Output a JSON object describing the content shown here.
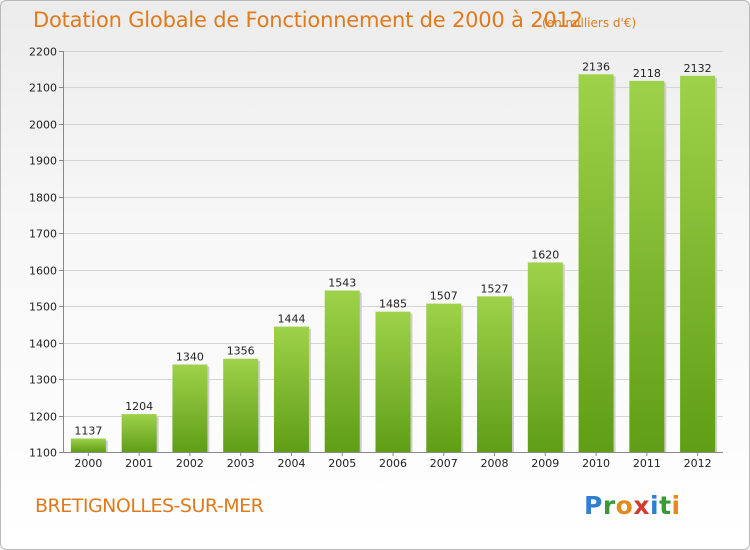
{
  "header": {
    "title": "Dotation Globale de Fonctionnement de 2000 à 2012",
    "unit": "(en milliers d'€)"
  },
  "footer": {
    "commune": "BRETIGNOLLES-SUR-MER",
    "logo_letters": [
      "P",
      "r",
      "o",
      "x",
      "i",
      "t",
      "i"
    ]
  },
  "colors": {
    "title": "#e07a1c",
    "bar_top": "#9ed24a",
    "bar_bottom": "#5f9e16",
    "grid": "#d4d4d4"
  },
  "chart_data": {
    "type": "bar",
    "title": "Dotation Globale de Fonctionnement de 2000 à 2012",
    "subtitle": "(en milliers d'€)",
    "xlabel": "",
    "ylabel": "",
    "categories": [
      "2000",
      "2001",
      "2002",
      "2003",
      "2004",
      "2005",
      "2006",
      "2007",
      "2008",
      "2009",
      "2010",
      "2011",
      "2012"
    ],
    "values": [
      1137,
      1204,
      1340,
      1356,
      1444,
      1543,
      1485,
      1507,
      1527,
      1620,
      2136,
      2118,
      2132
    ],
    "ylim": [
      1100,
      2200
    ],
    "yticks": [
      1100,
      1200,
      1300,
      1400,
      1500,
      1600,
      1700,
      1800,
      1900,
      2000,
      2100,
      2200
    ],
    "grid": true,
    "legend": "none"
  }
}
